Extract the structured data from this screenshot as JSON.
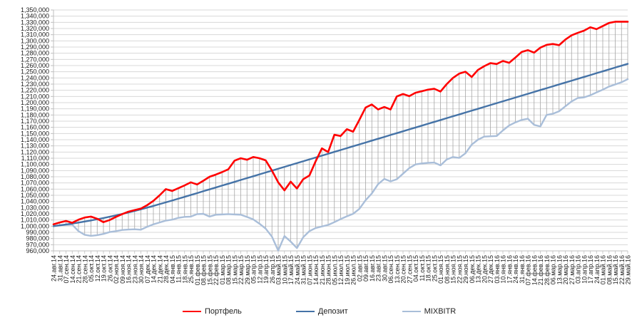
{
  "chart_data": {
    "type": "line",
    "title": "",
    "xlabel": "",
    "ylabel": "",
    "legend_position": "bottom",
    "grid": {
      "horizontal": true,
      "vertical": false,
      "high_low_lines": true
    },
    "y_axis": {
      "min": 960000,
      "max": 1350000,
      "step": 10000,
      "tick_format": "1,350,000"
    },
    "x_labels": [
      "24.авг.14",
      "31.авг.14",
      "07.сен.14",
      "14.сен.14",
      "21.сен.14",
      "28.сен.14",
      "05.окт.14",
      "12.окт.14",
      "19.окт.14",
      "26.окт.14",
      "02.ноя.14",
      "09.ноя.14",
      "16.ноя.14",
      "23.ноя.14",
      "30.ноя.14",
      "07.дек.14",
      "14.дек.14",
      "21.дек.14",
      "28.дек.14",
      "04.янв.15",
      "11.янв.15",
      "18.янв.15",
      "25.янв.15",
      "01.фев.15",
      "08.фев.15",
      "15.фев.15",
      "22.фев.15",
      "01.мар.15",
      "08.мар.15",
      "15.мар.15",
      "22.мар.15",
      "29.мар.15",
      "05.апр.15",
      "12.апр.15",
      "19.апр.15",
      "26.апр.15",
      "03.май.15",
      "10.май.15",
      "17.май.15",
      "24.май.15",
      "31.май.15",
      "07.июн.15",
      "14.июн.15",
      "21.июн.15",
      "28.июн.15",
      "05.июл.15",
      "12.июл.15",
      "19.июл.15",
      "26.июл.15",
      "02.авг.15",
      "09.авг.15",
      "16.авг.15",
      "23.авг.15",
      "30.авг.15",
      "06.сен.15",
      "13.сен.15",
      "20.сен.15",
      "27.сен.15",
      "04.окт.15",
      "11.окт.15",
      "18.окт.15",
      "25.окт.15",
      "01.ноя.15",
      "08.ноя.15",
      "15.ноя.15",
      "22.ноя.15",
      "29.ноя.15",
      "06.дек.15",
      "13.дек.15",
      "20.дек.15",
      "27.дек.15",
      "03.янв.16",
      "10.янв.16",
      "17.янв.16",
      "24.янв.16",
      "31.янв.16",
      "07.фев.16",
      "14.фев.16",
      "21.фев.16",
      "28.фев.16",
      "06.мар.16",
      "13.мар.16",
      "20.мар.16",
      "27.мар.16",
      "03.апр.16",
      "10.апр.16",
      "17.апр.16",
      "24.апр.16",
      "01.май.16",
      "08.май.16",
      "15.май.16",
      "22.май.16",
      "29.май.16"
    ],
    "series": [
      {
        "name": "Портфель",
        "key": "portfolio",
        "color": "#ff0000",
        "stroke_width": 2.6,
        "values": [
          1003000,
          1006000,
          1008500,
          1005500,
          1010500,
          1014000,
          1015500,
          1012000,
          1006500,
          1010000,
          1015000,
          1019500,
          1023500,
          1026000,
          1028500,
          1034000,
          1041000,
          1050000,
          1060000,
          1057000,
          1061500,
          1066000,
          1071000,
          1067500,
          1073500,
          1080000,
          1083500,
          1087500,
          1092000,
          1106000,
          1110000,
          1107500,
          1112000,
          1110000,
          1106500,
          1090000,
          1071000,
          1058000,
          1072000,
          1061000,
          1076000,
          1082000,
          1105000,
          1126000,
          1120000,
          1148000,
          1146000,
          1157000,
          1153000,
          1172000,
          1192000,
          1197000,
          1189000,
          1193000,
          1189000,
          1210000,
          1214000,
          1210500,
          1216000,
          1218500,
          1221000,
          1222500,
          1218000,
          1230000,
          1240000,
          1247000,
          1250000,
          1241500,
          1253000,
          1259000,
          1264000,
          1262500,
          1267500,
          1264500,
          1273000,
          1282000,
          1285000,
          1281000,
          1289000,
          1293500,
          1295000,
          1293000,
          1302000,
          1309000,
          1313000,
          1316500,
          1322000,
          1319000,
          1324000,
          1329000,
          1331000,
          1331000,
          1331000
        ]
      },
      {
        "name": "Депозит",
        "key": "deposit",
        "color": "#4573a7",
        "stroke_width": 2.4,
        "values": [
          1000000,
          1001300,
          1002700,
          1004200,
          1005800,
          1007500,
          1009300,
          1011200,
          1013200,
          1015300,
          1017500,
          1019800,
          1022200,
          1024700,
          1027300,
          1030000,
          1032800,
          1035700,
          1038600,
          1041500,
          1044500,
          1047500,
          1050500,
          1053500,
          1056600,
          1059600,
          1062600,
          1065700,
          1068700,
          1071700,
          1074800,
          1077800,
          1080800,
          1083900,
          1086900,
          1089900,
          1093000,
          1096000,
          1099000,
          1102100,
          1105100,
          1108100,
          1111200,
          1114200,
          1117200,
          1120300,
          1123300,
          1126300,
          1129400,
          1132400,
          1135400,
          1138500,
          1141500,
          1144500,
          1147600,
          1150600,
          1153600,
          1156700,
          1159700,
          1162700,
          1165800,
          1168800,
          1171800,
          1174900,
          1177900,
          1180900,
          1184000,
          1187000,
          1190000,
          1193100,
          1196100,
          1199100,
          1202200,
          1205200,
          1208200,
          1211300,
          1214300,
          1217300,
          1220400,
          1223400,
          1226400,
          1229500,
          1232500,
          1235500,
          1238600,
          1241600,
          1244600,
          1247700,
          1250700,
          1253700,
          1256800,
          1259800,
          1262800
        ]
      },
      {
        "name": "MIXBITR",
        "key": "mixbitr",
        "color": "#a9bed9",
        "stroke_width": 2.4,
        "values": [
          1000000,
          1001500,
          1002000,
          1002500,
          992000,
          986000,
          984300,
          985500,
          987500,
          990500,
          992000,
          993800,
          994500,
          995000,
          994300,
          999000,
          1003000,
          1006000,
          1009000,
          1010500,
          1013500,
          1015000,
          1015500,
          1019500,
          1020000,
          1015500,
          1018500,
          1019000,
          1019500,
          1019000,
          1018500,
          1015000,
          1011000,
          1004000,
          996000,
          983000,
          960500,
          984000,
          975000,
          964500,
          982000,
          992000,
          997000,
          999500,
          1002000,
          1006500,
          1011500,
          1016000,
          1020000,
          1028000,
          1042000,
          1053000,
          1068000,
          1076500,
          1072500,
          1076000,
          1085000,
          1094000,
          1100000,
          1101500,
          1102500,
          1103000,
          1098500,
          1108000,
          1112000,
          1110500,
          1118000,
          1132000,
          1140000,
          1145000,
          1145500,
          1146000,
          1155000,
          1163000,
          1168000,
          1172000,
          1174000,
          1164000,
          1161500,
          1180000,
          1182000,
          1186000,
          1194000,
          1202000,
          1207500,
          1208500,
          1212000,
          1216500,
          1221000,
          1226000,
          1229500,
          1233000,
          1238000
        ]
      }
    ],
    "style": {
      "gridline_color": "#d8d8d8",
      "axis_color": "#bfbfbf",
      "high_low_line_color": "#a6a6a6",
      "tick_text_color": "#1a1a1a"
    }
  }
}
